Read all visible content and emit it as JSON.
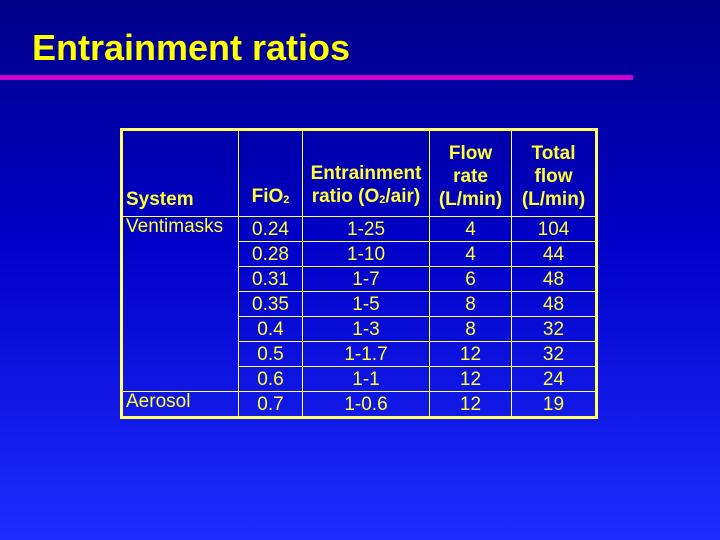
{
  "slide": {
    "title": "Entrainment ratios"
  },
  "table": {
    "headers": {
      "system": "System",
      "fio2": {
        "base": "FiO",
        "sub": "2"
      },
      "ratio": {
        "line1": "Entrainment",
        "base": "ratio (O",
        "sub": "2",
        "tail": "/air)"
      },
      "flow": {
        "line1": "Flow",
        "line2": "rate",
        "line3": "(L/min)"
      },
      "total": {
        "line1": "Total",
        "line2": "flow",
        "line3": "(L/min)"
      }
    },
    "rows": [
      {
        "system": "Ventimasks",
        "fio2": "0.24",
        "ratio": "1-25",
        "flow": "4",
        "total": "104"
      },
      {
        "system": "",
        "fio2": "0.28",
        "ratio": "1-10",
        "flow": "4",
        "total": "44"
      },
      {
        "system": "",
        "fio2": "0.31",
        "ratio": "1-7",
        "flow": "6",
        "total": "48"
      },
      {
        "system": "",
        "fio2": "0.35",
        "ratio": "1-5",
        "flow": "8",
        "total": "48"
      },
      {
        "system": "",
        "fio2": "0.4",
        "ratio": "1-3",
        "flow": "8",
        "total": "32"
      },
      {
        "system": "",
        "fio2": "0.5",
        "ratio": "1-1.7",
        "flow": "12",
        "total": "32"
      },
      {
        "system": "",
        "fio2": "0.6",
        "ratio": "1-1",
        "flow": "12",
        "total": "24"
      },
      {
        "system": "Aerosol",
        "fio2": "0.7",
        "ratio": "1-0.6",
        "flow": "12",
        "total": "19"
      }
    ]
  },
  "colors": {
    "background_top": "#000088",
    "background_bottom": "#1f2cff",
    "title": "#ffff00",
    "rule": "#cc00cc",
    "table_text": "#ffff33"
  }
}
